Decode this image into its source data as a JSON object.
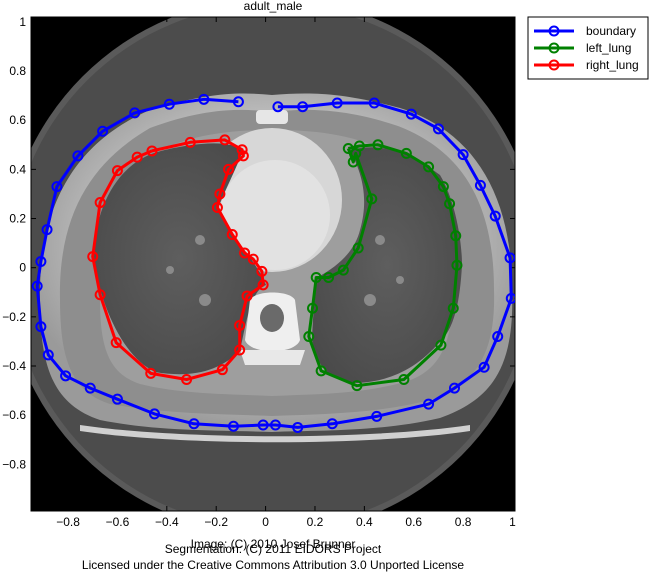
{
  "chart_data": {
    "type": "line",
    "title": "adult_male",
    "xlim": [
      -0.95,
      1.01
    ],
    "ylim": [
      -0.99,
      1.02
    ],
    "x_ticks": [
      -0.8,
      -0.6,
      -0.4,
      -0.2,
      0,
      0.2,
      0.4,
      0.6,
      0.8,
      1
    ],
    "x_tick_labels": [
      "−0.8",
      "−0.6",
      "−0.4",
      "−0.2",
      "0",
      "0.2",
      "0.4",
      "0.6",
      "0.8",
      "1"
    ],
    "y_ticks": [
      1,
      0.8,
      0.6,
      0.4,
      0.2,
      0,
      -0.2,
      -0.4,
      -0.6,
      -0.8
    ],
    "y_tick_labels": [
      "1",
      "0.8",
      "0.6",
      "0.4",
      "0.2",
      "0",
      "−0.2",
      "−0.4",
      "−0.6",
      "−0.8"
    ],
    "legend_position": "top-right-outside",
    "background_image": "ct-chest-slice",
    "credits": [
      "Image: (C) 2010 Josef Brunner",
      "Segmentation: (C) 2011 EIDORS Project",
      "Licensed under the Creative Commons Attribution 3.0 Unported License"
    ],
    "series": [
      {
        "name": "boundary",
        "color": "#0000ff",
        "closed": false,
        "points": [
          [
            0.05,
            0.655
          ],
          [
            0.15,
            0.655
          ],
          [
            0.29,
            0.67
          ],
          [
            0.44,
            0.67
          ],
          [
            0.59,
            0.625
          ],
          [
            0.7,
            0.565
          ],
          [
            0.8,
            0.46
          ],
          [
            0.87,
            0.335
          ],
          [
            0.93,
            0.21
          ],
          [
            0.99,
            0.04
          ],
          [
            0.995,
            -0.125
          ],
          [
            0.94,
            -0.28
          ],
          [
            0.885,
            -0.405
          ],
          [
            0.765,
            -0.49
          ],
          [
            0.66,
            -0.555
          ],
          [
            0.45,
            -0.605
          ],
          [
            0.27,
            -0.635
          ],
          [
            0.13,
            -0.65
          ],
          [
            0.04,
            -0.64
          ],
          [
            -0.01,
            -0.64
          ],
          [
            -0.13,
            -0.645
          ],
          [
            -0.29,
            -0.635
          ],
          [
            -0.45,
            -0.595
          ],
          [
            -0.6,
            -0.535
          ],
          [
            -0.71,
            -0.49
          ],
          [
            -0.81,
            -0.44
          ],
          [
            -0.88,
            -0.355
          ],
          [
            -0.91,
            -0.24
          ],
          [
            -0.925,
            -0.075
          ],
          [
            -0.91,
            0.025
          ],
          [
            -0.885,
            0.155
          ],
          [
            -0.845,
            0.33
          ],
          [
            -0.76,
            0.455
          ],
          [
            -0.66,
            0.555
          ],
          [
            -0.53,
            0.63
          ],
          [
            -0.39,
            0.665
          ],
          [
            -0.25,
            0.685
          ],
          [
            -0.11,
            0.675
          ]
        ]
      },
      {
        "name": "left_lung",
        "color": "#008000",
        "closed": true,
        "points": [
          [
            0.335,
            0.485
          ],
          [
            0.38,
            0.495
          ],
          [
            0.455,
            0.5
          ],
          [
            0.57,
            0.465
          ],
          [
            0.66,
            0.41
          ],
          [
            0.72,
            0.33
          ],
          [
            0.745,
            0.26
          ],
          [
            0.77,
            0.13
          ],
          [
            0.775,
            0.01
          ],
          [
            0.76,
            -0.165
          ],
          [
            0.71,
            -0.315
          ],
          [
            0.56,
            -0.455
          ],
          [
            0.37,
            -0.48
          ],
          [
            0.225,
            -0.42
          ],
          [
            0.175,
            -0.28
          ],
          [
            0.19,
            -0.165
          ],
          [
            0.205,
            -0.04
          ],
          [
            0.255,
            -0.04
          ],
          [
            0.315,
            -0.01
          ],
          [
            0.375,
            0.08
          ],
          [
            0.43,
            0.28
          ],
          [
            0.365,
            0.465
          ],
          [
            0.355,
            0.43
          ]
        ]
      },
      {
        "name": "right_lung",
        "color": "#ff0000",
        "closed": true,
        "points": [
          [
            -0.46,
            0.475
          ],
          [
            -0.305,
            0.51
          ],
          [
            -0.165,
            0.52
          ],
          [
            -0.095,
            0.48
          ],
          [
            -0.09,
            0.455
          ],
          [
            -0.15,
            0.4
          ],
          [
            -0.185,
            0.3
          ],
          [
            -0.195,
            0.245
          ],
          [
            -0.135,
            0.135
          ],
          [
            -0.085,
            0.06
          ],
          [
            -0.05,
            0.035
          ],
          [
            -0.015,
            -0.015
          ],
          [
            -0.01,
            -0.07
          ],
          [
            -0.075,
            -0.115
          ],
          [
            -0.105,
            -0.235
          ],
          [
            -0.105,
            -0.335
          ],
          [
            -0.175,
            -0.415
          ],
          [
            -0.32,
            -0.455
          ],
          [
            -0.465,
            -0.43
          ],
          [
            -0.605,
            -0.305
          ],
          [
            -0.67,
            -0.11
          ],
          [
            -0.7,
            0.045
          ],
          [
            -0.67,
            0.265
          ],
          [
            -0.6,
            0.395
          ],
          [
            -0.52,
            0.45
          ]
        ]
      }
    ]
  }
}
